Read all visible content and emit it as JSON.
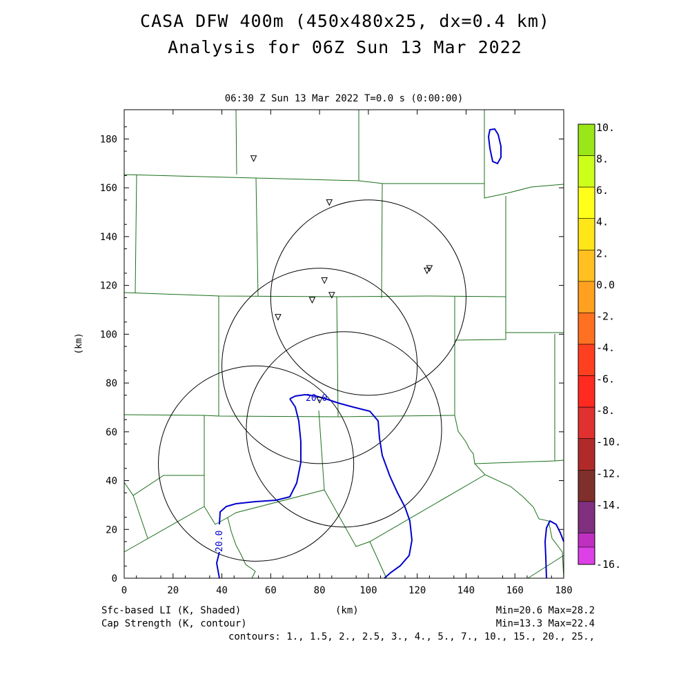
{
  "header": {
    "title_line1": "CASA DFW 400m (450x480x25, dx=0.4 km)",
    "title_line2": "Analysis for 06Z Sun 13 Mar 2022",
    "subtitle": "06:30 Z Sun 13 Mar 2022   T=0.0 s (0:00:00)"
  },
  "footer": {
    "left_line1": "Sfc-based LI (K, Shaded)",
    "left_line2": "Cap Strength (K, contour)",
    "center": "(km)",
    "right_line1": "Min=20.6 Max=28.2",
    "right_line2": "Min=13.3 Max=22.4",
    "contours": "contours: 1., 1.5, 2., 2.5, 3., 4., 5., 7., 10., 15., 20., 25.,"
  },
  "chart_data": {
    "type": "contour-map",
    "xlabel": "(km)",
    "ylabel": "(km)",
    "xlim": [
      0,
      180
    ],
    "ylim": [
      0,
      192
    ],
    "xticks": [
      0,
      20,
      40,
      60,
      80,
      100,
      120,
      140,
      160,
      180
    ],
    "yticks": [
      0,
      20,
      40,
      60,
      80,
      100,
      120,
      140,
      160,
      180
    ],
    "colorbar": {
      "labels": [
        "10.",
        "8.",
        "6.",
        "4.",
        "2.",
        "0.0",
        "-2.",
        "-4.",
        "-6.",
        "-8.",
        "-10.",
        "-12.",
        "-14.",
        "-16."
      ],
      "colors": [
        "#99e619",
        "#ccff1a",
        "#ffff1a",
        "#ffe619",
        "#ffc020",
        "#ffa020",
        "#ff7020",
        "#ff4020",
        "#ff2a20",
        "#e03030",
        "#b02a2a",
        "#80302a",
        "#80307f",
        "#c030c0"
      ],
      "bottom_color": "#dd40e6"
    },
    "radar_circles_km": [
      {
        "cx": 100,
        "cy": 115,
        "r": 40
      },
      {
        "cx": 80,
        "cy": 87,
        "r": 40
      },
      {
        "cx": 90,
        "cy": 61,
        "r": 40
      },
      {
        "cx": 54,
        "cy": 47,
        "r": 40
      }
    ],
    "stations_km": [
      [
        53,
        172
      ],
      [
        84,
        154
      ],
      [
        125,
        127
      ],
      [
        124,
        126
      ],
      [
        82,
        122
      ],
      [
        85,
        116
      ],
      [
        77,
        114
      ],
      [
        63,
        107
      ],
      [
        80,
        73
      ]
    ],
    "contour_label": "20.0",
    "contour_color": "#0000cc",
    "county_line_color": "#1a6e1a"
  }
}
